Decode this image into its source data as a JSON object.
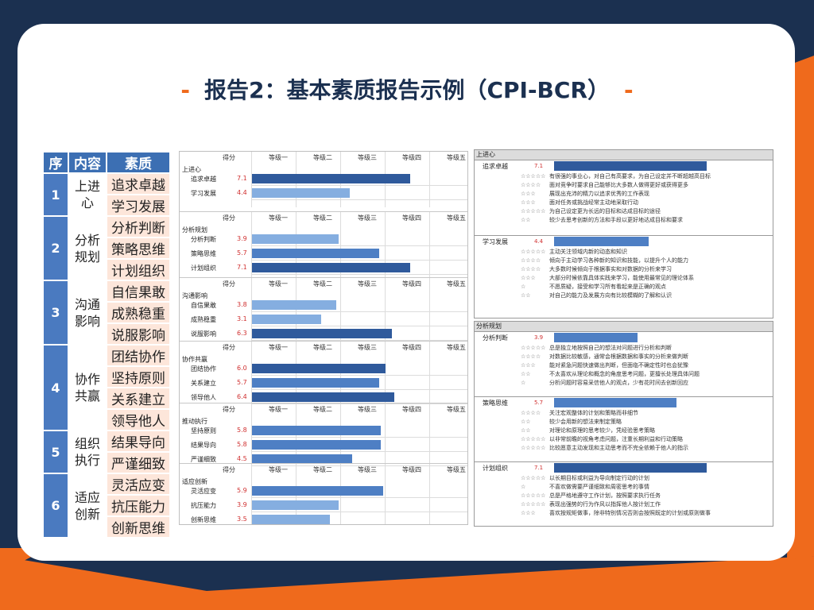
{
  "title": {
    "text": "报告2：基本素质报告示例（CPI-BCR）",
    "dash": "-"
  },
  "colors": {
    "navy": "#1b3050",
    "orange": "#ef6a1c",
    "blue": "#3c6fb3",
    "peach": "#fde6da",
    "bar_dark": "#2f5a9c",
    "bar_mid": "#4e7fc4",
    "bar_light": "#85aee0"
  },
  "left_table": {
    "headers": [
      "序",
      "内容",
      "素质"
    ],
    "groups": [
      {
        "num": "1",
        "content": "上进心",
        "qualities": [
          "追求卓越",
          "学习发展"
        ]
      },
      {
        "num": "2",
        "content": "分析规划",
        "qualities": [
          "分析判断",
          "策略思维",
          "计划组织"
        ]
      },
      {
        "num": "3",
        "content": "沟通影响",
        "qualities": [
          "自信果敢",
          "成熟稳重",
          "说服影响"
        ]
      },
      {
        "num": "4",
        "content": "协作共赢",
        "qualities": [
          "团结协作",
          "坚持原则",
          "关系建立",
          "领导他人"
        ]
      },
      {
        "num": "5",
        "content": "组织执行",
        "qualities": [
          "结果导向",
          "严谨细致"
        ]
      },
      {
        "num": "6",
        "content": "适应创新",
        "qualities": [
          "灵活应变",
          "抗压能力",
          "创新思维"
        ]
      }
    ]
  },
  "score_chart": {
    "header": [
      "得分",
      "等级一",
      "等级二",
      "等级三",
      "等级四",
      "等级五"
    ],
    "max_score": 10,
    "sections": [
      {
        "name": "上进心",
        "items": [
          {
            "label": "追求卓越",
            "score": "7.1"
          },
          {
            "label": "学习发展",
            "score": "4.4"
          }
        ]
      },
      {
        "name": "分析规划",
        "items": [
          {
            "label": "分析判断",
            "score": "3.9"
          },
          {
            "label": "策略思维",
            "score": "5.7"
          },
          {
            "label": "计划组织",
            "score": "7.1"
          }
        ]
      },
      {
        "name": "沟通影响",
        "items": [
          {
            "label": "自信果敢",
            "score": "3.8"
          },
          {
            "label": "成熟稳重",
            "score": "3.1"
          },
          {
            "label": "说服影响",
            "score": "6.3"
          }
        ]
      },
      {
        "name": "协作共赢",
        "items": [
          {
            "label": "团结协作",
            "score": "6.0"
          },
          {
            "label": "关系建立",
            "score": "5.7"
          },
          {
            "label": "领导他人",
            "score": "6.4"
          }
        ]
      },
      {
        "name": "推动执行",
        "items": [
          {
            "label": "坚持原则",
            "score": "5.8"
          },
          {
            "label": "结果导向",
            "score": "5.8"
          },
          {
            "label": "严谨细致",
            "score": "4.5"
          }
        ]
      },
      {
        "name": "适应创新",
        "items": [
          {
            "label": "灵活应变",
            "score": "5.9"
          },
          {
            "label": "抗压能力",
            "score": "3.9"
          },
          {
            "label": "创新思维",
            "score": "3.5"
          }
        ]
      }
    ]
  },
  "detail_panels": [
    {
      "title": "上进心",
      "subs": [
        {
          "name": "追求卓越",
          "score": "7.1",
          "lines": [
            {
              "stars": "☆☆☆☆☆",
              "text": "有很强的事业心，对自己有高要求，为自己设定并不断超越高目标"
            },
            {
              "stars": "☆☆☆☆",
              "text": "面对竞争时要求自己能够比大多数人做得更好或获得更多"
            },
            {
              "stars": "☆☆☆",
              "text": "展现出充沛的精力以追求优秀的工作表现"
            },
            {
              "stars": "☆☆☆",
              "text": "面对任务或挑战经常主动地采取行动"
            },
            {
              "stars": "☆☆☆☆☆",
              "text": "为自己设定更为长远的目标和达成目标的途径"
            },
            {
              "stars": "☆☆",
              "text": "较少去思考创新的方法和手段以更好地达成目标和要求"
            }
          ]
        },
        {
          "name": "学习发展",
          "score": "4.4",
          "lines": [
            {
              "stars": "☆☆☆☆☆",
              "text": "主动关注领域内新的动态和知识"
            },
            {
              "stars": "☆☆☆☆",
              "text": "倾向于主动学习各种新的知识和技能，以提升个人的能力"
            },
            {
              "stars": "☆☆☆☆",
              "text": "大多数时候倾向于根据事实和对数据的分析来学习"
            },
            {
              "stars": "☆☆☆",
              "text": "大部分时候依靠具体实践来学习，能使用最常见的理论体系"
            },
            {
              "stars": "☆",
              "text": "不愿质疑，接受和学习所有看起来是正确的观点"
            },
            {
              "stars": "☆☆",
              "text": "对自己的能力及发展方向有比较模糊的了解和认识"
            }
          ]
        }
      ]
    },
    {
      "title": "分析规划",
      "subs": [
        {
          "name": "分析判断",
          "score": "3.9",
          "lines": [
            {
              "stars": "☆☆☆☆☆",
              "text": "总是独立地按照自己的想法对问题进行分析和判断"
            },
            {
              "stars": "☆☆☆☆",
              "text": "对数据比较敏感，通常会根据数据和事实的分析来做判断"
            },
            {
              "stars": "☆☆☆",
              "text": "能对紧急问题快速做出判断，但面临不确定性时也会犹豫"
            },
            {
              "stars": "☆☆",
              "text": "不太喜欢从理论和概念的角度思考问题，更擅长处理具体问题"
            },
            {
              "stars": "☆",
              "text": "分析问题时容易采信他人的观点，少有花时间去创新回应"
            }
          ]
        },
        {
          "name": "策略思维",
          "score": "5.7",
          "lines": [
            {
              "stars": "☆☆☆☆",
              "text": "关注宏观整体的计划和策略而非细节"
            },
            {
              "stars": "☆☆",
              "text": "较少会用新的想法来制定策略"
            },
            {
              "stars": "☆☆",
              "text": "对理论和原理的思考较少，凭经验思考策略"
            },
            {
              "stars": "☆☆☆☆☆",
              "text": "以非常前瞻的视角考虑问题，注重长期利益和行动策略"
            },
            {
              "stars": "☆☆☆☆☆",
              "text": "比较愿意主动发现和主动思考而不完全依赖于他人的指示"
            }
          ]
        },
        {
          "name": "计划组织",
          "score": "7.1",
          "lines": [
            {
              "stars": "☆☆☆☆☆",
              "text": "以长期目标或利益为导向制定行动的计划"
            },
            {
              "stars": "☆",
              "text": "不喜欢做需要严谨细致和周密思考的事情"
            },
            {
              "stars": "☆☆☆☆☆",
              "text": "总是严格地遵守工作计划，按照要求执行任务"
            },
            {
              "stars": "☆☆☆☆☆",
              "text": "表现出强势的行为作风以指挥他人按计划工作"
            },
            {
              "stars": "☆☆☆",
              "text": "喜欢按规矩做事，除非特别情况否则会按照既定的计划或原则做事"
            }
          ]
        }
      ]
    }
  ]
}
